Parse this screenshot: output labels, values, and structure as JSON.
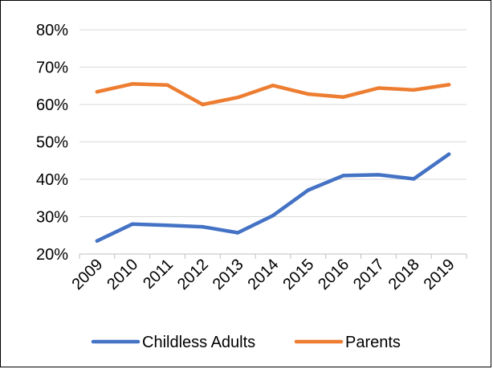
{
  "chart_data": {
    "type": "line",
    "title": "",
    "xlabel": "",
    "ylabel": "",
    "categories": [
      "2009",
      "2010",
      "2011",
      "2012",
      "2013",
      "2014",
      "2015",
      "2016",
      "2017",
      "2018",
      "2019"
    ],
    "ylim": [
      20,
      80
    ],
    "yticks": [
      20,
      30,
      40,
      50,
      60,
      70,
      80
    ],
    "ytick_labels": [
      "20%",
      "30%",
      "40%",
      "50%",
      "60%",
      "70%",
      "80%"
    ],
    "grid": "horizontal",
    "legend_position": "bottom",
    "series": [
      {
        "name": "Childless Adults",
        "color": "#4472C4",
        "values": [
          23.5,
          28.0,
          27.7,
          27.3,
          25.7,
          30.3,
          37.1,
          41.0,
          41.2,
          40.1,
          46.7
        ]
      },
      {
        "name": "Parents",
        "color": "#ED7D31",
        "values": [
          63.4,
          65.5,
          65.2,
          60.0,
          61.9,
          65.1,
          62.8,
          62.0,
          64.4,
          63.9,
          65.3
        ]
      }
    ]
  }
}
